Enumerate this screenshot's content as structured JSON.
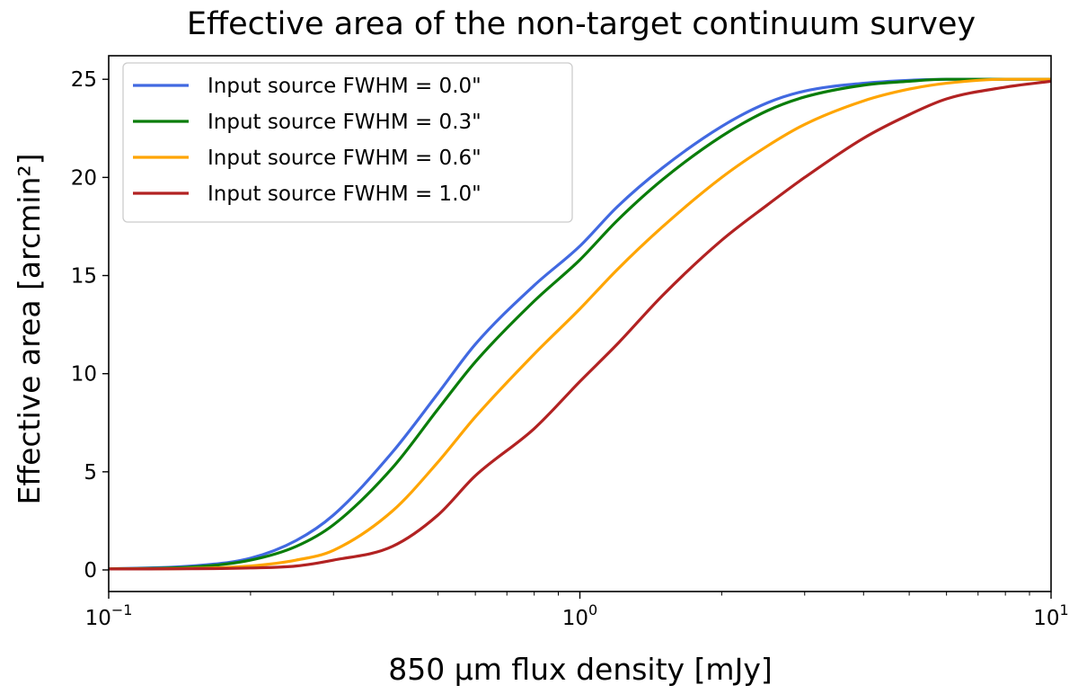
{
  "chart_data": {
    "type": "line",
    "title": "Effective area of the non-target continuum survey",
    "xlabel": "850 μm flux density [mJy]",
    "ylabel": "Effective area [arcmin²]",
    "xscale": "log",
    "xlim": [
      0.1,
      10
    ],
    "ylim": [
      -1.1,
      26.2
    ],
    "x_ticks": [
      {
        "value": 0.1,
        "base": "10",
        "exp": "−1"
      },
      {
        "value": 1,
        "base": "10",
        "exp": "0"
      },
      {
        "value": 10,
        "base": "10",
        "exp": "1"
      }
    ],
    "y_ticks": [
      0,
      5,
      10,
      15,
      20,
      25
    ],
    "grid": false,
    "legend_position": "top-left",
    "x": [
      0.1,
      0.15,
      0.2,
      0.25,
      0.3,
      0.4,
      0.5,
      0.6,
      0.8,
      1.0,
      1.2,
      1.5,
      2.0,
      2.5,
      3.0,
      4.0,
      5.0,
      6.0,
      8.0,
      10.0
    ],
    "series": [
      {
        "name": "Input source FWHM = 0.0\"",
        "color": "#4169e1",
        "values": [
          0.05,
          0.2,
          0.6,
          1.5,
          2.8,
          6.0,
          9.0,
          11.5,
          14.5,
          16.5,
          18.5,
          20.5,
          22.6,
          23.8,
          24.4,
          24.8,
          24.95,
          25.0,
          25.0,
          25.0
        ]
      },
      {
        "name": "Input source FWHM = 0.3\"",
        "color": "#0a7d0a",
        "values": [
          0.05,
          0.15,
          0.5,
          1.2,
          2.3,
          5.2,
          8.2,
          10.6,
          13.7,
          15.8,
          17.8,
          19.9,
          22.1,
          23.4,
          24.1,
          24.7,
          24.9,
          25.0,
          25.0,
          25.0
        ]
      },
      {
        "name": "Input source FWHM = 0.6\"",
        "color": "#ffa500",
        "values": [
          0.05,
          0.08,
          0.2,
          0.5,
          1.0,
          3.0,
          5.5,
          7.8,
          11.0,
          13.3,
          15.3,
          17.5,
          20.0,
          21.6,
          22.7,
          23.9,
          24.5,
          24.8,
          25.0,
          25.0
        ]
      },
      {
        "name": "Input source FWHM = 1.0\"",
        "color": "#b22222",
        "values": [
          0.05,
          0.06,
          0.1,
          0.2,
          0.5,
          1.2,
          2.8,
          4.8,
          7.2,
          9.6,
          11.5,
          14.0,
          16.8,
          18.6,
          20.0,
          22.0,
          23.2,
          24.0,
          24.6,
          24.9
        ]
      }
    ]
  }
}
